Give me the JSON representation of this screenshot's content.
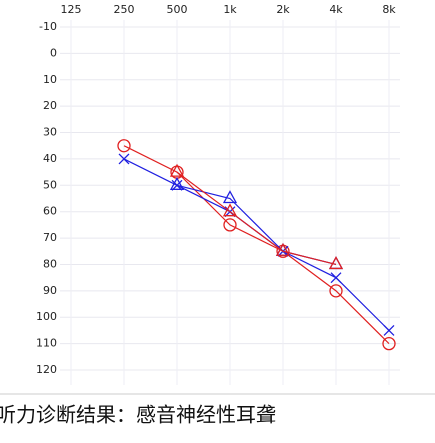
{
  "chart_data": {
    "type": "line",
    "categories": [
      "125",
      "250",
      "500",
      "1k",
      "2k",
      "4k",
      "8k"
    ],
    "series": [
      {
        "color": "#e02020",
        "marker": "circle",
        "values": [
          null,
          35,
          45,
          65,
          75,
          90,
          110
        ]
      },
      {
        "color": "#2020e0",
        "marker": "cross",
        "values": [
          null,
          40,
          50,
          60,
          75,
          85,
          105
        ]
      },
      {
        "color": "#2020e0",
        "marker": "triangle",
        "values": [
          null,
          null,
          50,
          55,
          75,
          80,
          null
        ]
      },
      {
        "color": "#e02020",
        "marker": "triangle",
        "values": [
          null,
          null,
          45,
          60,
          75,
          80,
          null
        ]
      }
    ],
    "ylim": [
      -10,
      120
    ],
    "y_inverted": true,
    "yticks": [
      -10,
      0,
      10,
      20,
      30,
      40,
      50,
      60,
      70,
      80,
      90,
      100,
      110,
      120
    ],
    "grid": true
  },
  "diagnosis": "听力诊断结果：感音神经性耳聋"
}
